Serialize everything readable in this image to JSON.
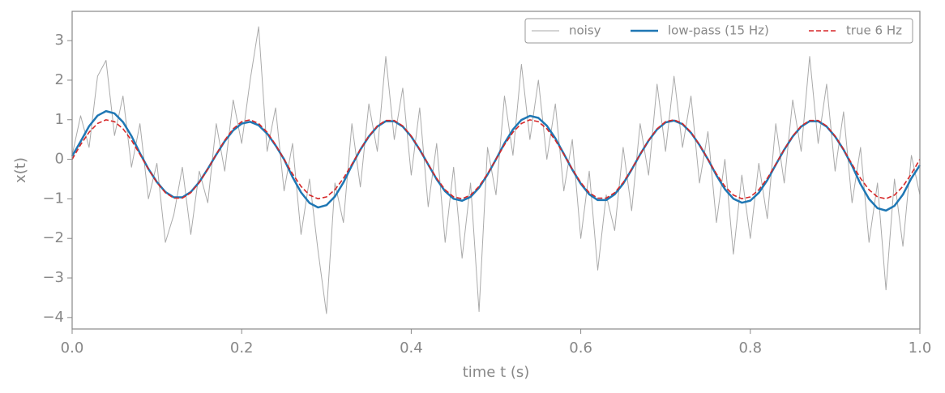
{
  "chart_data": {
    "type": "line",
    "xlabel": "time t (s)",
    "ylabel": "x(t)",
    "xlim": [
      0,
      1
    ],
    "ylim": [
      -4.29,
      3.74
    ],
    "xticks": [
      {
        "value": 0,
        "label": "0.0"
      },
      0.2,
      0.4,
      0.6,
      0.8,
      {
        "value": 1,
        "label": "1.0"
      }
    ],
    "yticks": [
      {
        "value": -4,
        "label": "−4"
      },
      {
        "value": -3,
        "label": "−3"
      },
      {
        "value": -2,
        "label": "−2"
      },
      {
        "value": -1,
        "label": "−1"
      },
      0,
      1,
      2,
      3
    ],
    "legend": "upper right",
    "x": [
      0,
      0.01,
      0.02,
      0.03,
      0.04,
      0.05,
      0.06,
      0.07,
      0.08,
      0.09,
      0.1,
      0.11,
      0.12,
      0.13,
      0.14,
      0.15,
      0.16,
      0.17,
      0.18,
      0.19,
      0.2,
      0.21,
      0.22,
      0.23,
      0.24,
      0.25,
      0.26,
      0.27,
      0.28,
      0.29,
      0.3,
      0.31,
      0.32,
      0.33,
      0.34,
      0.35,
      0.36,
      0.37,
      0.38,
      0.39,
      0.4,
      0.41,
      0.42,
      0.43,
      0.44,
      0.45,
      0.46,
      0.47,
      0.48,
      0.49,
      0.5,
      0.51,
      0.52,
      0.53,
      0.54,
      0.55,
      0.56,
      0.57,
      0.58,
      0.59,
      0.6,
      0.61,
      0.62,
      0.63,
      0.64,
      0.65,
      0.66,
      0.67,
      0.68,
      0.69,
      0.7,
      0.71,
      0.72,
      0.73,
      0.74,
      0.75,
      0.76,
      0.77,
      0.78,
      0.79,
      0.8,
      0.81,
      0.82,
      0.83,
      0.84,
      0.85,
      0.86,
      0.87,
      0.88,
      0.89,
      0.9,
      0.91,
      0.92,
      0.93,
      0.94,
      0.95,
      0.96,
      0.97,
      0.98,
      0.99,
      1
    ],
    "series": [
      {
        "name": "noisy",
        "color": "#aaaaaa",
        "width": 1,
        "dash": false,
        "values": [
          0.1,
          1.1,
          0.3,
          2.1,
          2.5,
          0.6,
          1.6,
          -0.2,
          0.9,
          -1.0,
          -0.1,
          -2.1,
          -1.4,
          -0.2,
          -1.9,
          -0.3,
          -1.1,
          0.9,
          -0.3,
          1.5,
          0.4,
          2.0,
          3.35,
          0.2,
          1.3,
          -0.8,
          0.4,
          -1.9,
          -0.5,
          -2.3,
          -3.9,
          -0.6,
          -1.6,
          0.9,
          -0.7,
          1.4,
          0.2,
          2.6,
          0.5,
          1.8,
          -0.4,
          1.3,
          -1.2,
          0.4,
          -2.1,
          -0.2,
          -2.5,
          -0.6,
          -3.85,
          0.3,
          -0.9,
          1.6,
          0.1,
          2.4,
          0.5,
          2.0,
          0.0,
          1.4,
          -0.8,
          0.5,
          -2.0,
          -0.3,
          -2.8,
          -0.9,
          -1.8,
          0.3,
          -1.3,
          0.9,
          -0.4,
          1.9,
          0.2,
          2.1,
          0.3,
          1.6,
          -0.6,
          0.7,
          -1.6,
          0.0,
          -2.4,
          -0.4,
          -2.0,
          -0.1,
          -1.5,
          0.9,
          -0.6,
          1.5,
          0.2,
          2.6,
          0.4,
          1.9,
          -0.3,
          1.2,
          -1.1,
          0.3,
          -2.1,
          -0.6,
          -3.3,
          -0.5,
          -2.2,
          0.1,
          -0.9
        ]
      },
      {
        "name": "low-pass (15 Hz)",
        "color": "#1f77b4",
        "width": 2.5,
        "dash": false,
        "values": [
          0.08,
          0.449,
          0.836,
          1.104,
          1.218,
          1.16,
          0.941,
          0.588,
          0.153,
          -0.244,
          -0.576,
          -0.827,
          -0.962,
          -0.962,
          -0.827,
          -0.576,
          -0.244,
          0.119,
          0.458,
          0.732,
          0.903,
          0.948,
          0.86,
          0.651,
          0.35,
          0,
          -0.449,
          -0.836,
          -1.104,
          -1.218,
          -1.16,
          -0.941,
          -0.588,
          -0.153,
          0.244,
          0.576,
          0.827,
          0.962,
          0.962,
          0.827,
          0.576,
          0.244,
          -0.131,
          -0.506,
          -0.81,
          -0.999,
          -1.048,
          -0.95,
          -0.719,
          -0.386,
          0,
          0.405,
          0.754,
          0.996,
          1.098,
          1.046,
          0.848,
          0.53,
          0.138,
          -0.261,
          -0.617,
          -0.886,
          -1.031,
          -1.031,
          -0.886,
          -0.617,
          -0.261,
          0.123,
          0.472,
          0.756,
          0.932,
          0.978,
          0.887,
          0.671,
          0.361,
          0,
          -0.405,
          -0.754,
          -0.996,
          -1.098,
          -1.046,
          -0.848,
          -0.53,
          -0.138,
          0.244,
          0.576,
          0.827,
          0.962,
          0.962,
          0.827,
          0.576,
          0.244,
          -0.163,
          -0.627,
          -1.002,
          -1.237,
          -1.297,
          -1.177,
          -0.892,
          -0.478,
          -0.15
        ]
      },
      {
        "name": "true 6 Hz",
        "color": "#d62728",
        "width": 1.6,
        "dash": true,
        "values": [
          0,
          0.368,
          0.685,
          0.905,
          0.998,
          0.951,
          0.771,
          0.482,
          0.125,
          -0.249,
          -0.588,
          -0.844,
          -0.982,
          -0.982,
          -0.844,
          -0.588,
          -0.249,
          0.125,
          0.482,
          0.771,
          0.951,
          0.998,
          0.905,
          0.685,
          0.368,
          0,
          -0.368,
          -0.685,
          -0.905,
          -0.998,
          -0.951,
          -0.771,
          -0.482,
          -0.125,
          0.249,
          0.588,
          0.844,
          0.982,
          0.982,
          0.844,
          0.588,
          0.249,
          -0.125,
          -0.482,
          -0.771,
          -0.951,
          -0.998,
          -0.905,
          -0.685,
          -0.368,
          0,
          0.368,
          0.685,
          0.905,
          0.998,
          0.951,
          0.771,
          0.482,
          0.125,
          -0.249,
          -0.588,
          -0.844,
          -0.982,
          -0.982,
          -0.844,
          -0.588,
          -0.249,
          0.125,
          0.482,
          0.771,
          0.951,
          0.998,
          0.905,
          0.685,
          0.368,
          0,
          -0.368,
          -0.685,
          -0.905,
          -0.998,
          -0.951,
          -0.771,
          -0.482,
          -0.125,
          0.249,
          0.588,
          0.844,
          0.982,
          0.982,
          0.844,
          0.588,
          0.249,
          -0.125,
          -0.482,
          -0.771,
          -0.951,
          -0.998,
          -0.905,
          -0.685,
          -0.368,
          0
        ]
      }
    ]
  }
}
